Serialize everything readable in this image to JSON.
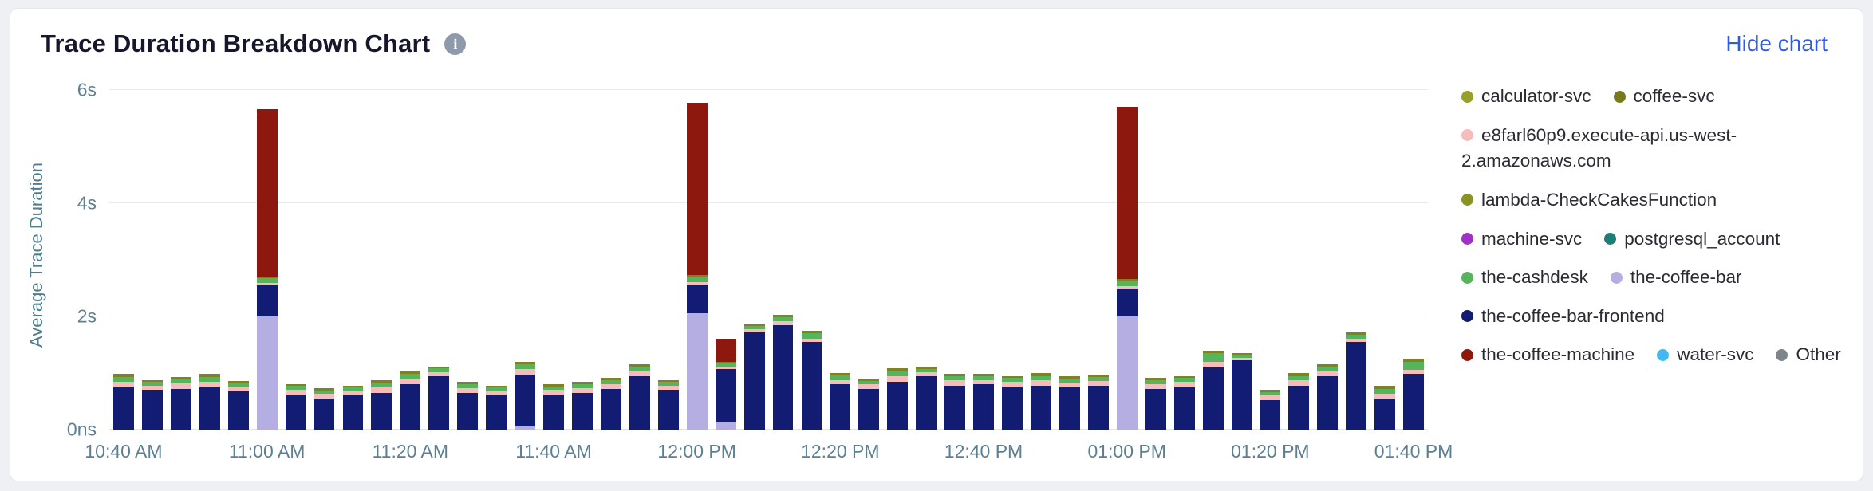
{
  "header": {
    "title": "Trace Duration Breakdown Chart",
    "info_icon": "i",
    "hide_chart_label": "Hide chart"
  },
  "chart_data": {
    "type": "bar",
    "stacked": true,
    "title": "Trace Duration Breakdown Chart",
    "ylabel": "Average Trace Duration",
    "ylim": [
      0,
      6
    ],
    "yticks": [
      {
        "label": "6s",
        "value": 6
      },
      {
        "label": "4s",
        "value": 4
      },
      {
        "label": "2s",
        "value": 2
      },
      {
        "label": "0ns",
        "value": 0
      }
    ],
    "gridline_values": [
      2,
      4,
      6
    ],
    "xticks": [
      {
        "label": "10:40 AM",
        "index": 0
      },
      {
        "label": "11:00 AM",
        "index": 5
      },
      {
        "label": "11:20 AM",
        "index": 10
      },
      {
        "label": "11:40 AM",
        "index": 15
      },
      {
        "label": "12:00 PM",
        "index": 20
      },
      {
        "label": "12:20 PM",
        "index": 25
      },
      {
        "label": "12:40 PM",
        "index": 30
      },
      {
        "label": "01:00 PM",
        "index": 35
      },
      {
        "label": "01:20 PM",
        "index": 40
      },
      {
        "label": "01:40 PM",
        "index": 45
      }
    ],
    "series": [
      {
        "name": "the-coffee-bar",
        "color": "#b5aee2"
      },
      {
        "name": "the-coffee-bar-frontend",
        "color": "#121c72"
      },
      {
        "name": "e8farl60p9.execute-api.us-west-2.amazonaws.com",
        "color": "#f6bcbc"
      },
      {
        "name": "the-cashdesk",
        "color": "#55b45c"
      },
      {
        "name": "coffee-svc",
        "color": "#7e8222"
      },
      {
        "name": "the-coffee-machine",
        "color": "#8c180e"
      }
    ],
    "bars": [
      [
        0,
        0.75,
        0.1,
        0.08,
        0.05,
        0
      ],
      [
        0,
        0.7,
        0.08,
        0.06,
        0.04,
        0
      ],
      [
        0,
        0.72,
        0.1,
        0.07,
        0.04,
        0
      ],
      [
        0,
        0.75,
        0.1,
        0.08,
        0.05,
        0
      ],
      [
        0,
        0.68,
        0.08,
        0.06,
        0.04,
        0
      ],
      [
        2.0,
        0.55,
        0.04,
        0.08,
        0.04,
        2.95
      ],
      [
        0,
        0.62,
        0.08,
        0.07,
        0.04,
        0
      ],
      [
        0,
        0.55,
        0.08,
        0.06,
        0.04,
        0
      ],
      [
        0,
        0.6,
        0.08,
        0.06,
        0.04,
        0
      ],
      [
        0,
        0.65,
        0.1,
        0.07,
        0.05,
        0
      ],
      [
        0,
        0.8,
        0.1,
        0.08,
        0.05,
        0
      ],
      [
        0,
        0.95,
        0.06,
        0.07,
        0.04,
        0
      ],
      [
        0,
        0.65,
        0.08,
        0.07,
        0.04,
        0
      ],
      [
        0,
        0.6,
        0.08,
        0.06,
        0.04,
        0
      ],
      [
        0.05,
        0.92,
        0.1,
        0.08,
        0.05,
        0
      ],
      [
        0,
        0.62,
        0.08,
        0.06,
        0.04,
        0
      ],
      [
        0,
        0.65,
        0.08,
        0.07,
        0.04,
        0
      ],
      [
        0,
        0.72,
        0.09,
        0.07,
        0.04,
        0
      ],
      [
        0,
        0.95,
        0.09,
        0.07,
        0.05,
        0
      ],
      [
        0,
        0.7,
        0.08,
        0.06,
        0.04,
        0
      ],
      [
        2.05,
        0.52,
        0.04,
        0.08,
        0.04,
        3.05
      ],
      [
        0.12,
        0.95,
        0.05,
        0.05,
        0.03,
        0.4
      ],
      [
        0,
        1.72,
        0.05,
        0.06,
        0.03,
        0
      ],
      [
        0,
        1.85,
        0.06,
        0.08,
        0.04,
        0
      ],
      [
        0,
        1.55,
        0.06,
        0.1,
        0.04,
        0
      ],
      [
        0,
        0.8,
        0.08,
        0.08,
        0.04,
        0
      ],
      [
        0,
        0.72,
        0.08,
        0.06,
        0.04,
        0
      ],
      [
        0,
        0.85,
        0.1,
        0.08,
        0.05,
        0
      ],
      [
        0,
        0.95,
        0.06,
        0.06,
        0.04,
        0
      ],
      [
        0,
        0.78,
        0.09,
        0.07,
        0.04,
        0
      ],
      [
        0,
        0.8,
        0.08,
        0.07,
        0.04,
        0
      ],
      [
        0,
        0.75,
        0.09,
        0.07,
        0.04,
        0
      ],
      [
        0,
        0.78,
        0.09,
        0.08,
        0.05,
        0
      ],
      [
        0,
        0.75,
        0.08,
        0.07,
        0.04,
        0
      ],
      [
        0,
        0.78,
        0.08,
        0.07,
        0.04,
        0
      ],
      [
        2.0,
        0.5,
        0.04,
        0.08,
        0.04,
        3.05
      ],
      [
        0,
        0.72,
        0.08,
        0.07,
        0.04,
        0
      ],
      [
        0,
        0.75,
        0.09,
        0.07,
        0.04,
        0
      ],
      [
        0,
        1.1,
        0.1,
        0.15,
        0.05,
        0
      ],
      [
        0,
        1.22,
        0.05,
        0.05,
        0.03,
        0
      ],
      [
        0,
        0.52,
        0.08,
        0.06,
        0.04,
        0
      ],
      [
        0,
        0.78,
        0.09,
        0.08,
        0.05,
        0
      ],
      [
        0,
        0.95,
        0.08,
        0.08,
        0.04,
        0
      ],
      [
        0,
        1.55,
        0.05,
        0.08,
        0.04,
        0
      ],
      [
        0,
        0.55,
        0.09,
        0.08,
        0.05,
        0
      ],
      [
        0,
        0.98,
        0.07,
        0.15,
        0.05,
        0
      ]
    ],
    "legend": [
      {
        "label": "calculator-svc",
        "color": "#97a02c"
      },
      {
        "label": "coffee-svc",
        "color": "#787a1d"
      },
      {
        "label": "e8farl60p9.execute-api.us-west-2.amazonaws.com",
        "color": "#f6bcbc"
      },
      {
        "label": "lambda-CheckCakesFunction",
        "color": "#8a9321"
      },
      {
        "label": "machine-svc",
        "color": "#9d33c4"
      },
      {
        "label": "postgresql_account",
        "color": "#1e7d74"
      },
      {
        "label": "the-cashdesk",
        "color": "#55b45c"
      },
      {
        "label": "the-coffee-bar",
        "color": "#b5aee2"
      },
      {
        "label": "the-coffee-bar-frontend",
        "color": "#121c72"
      },
      {
        "label": "the-coffee-machine",
        "color": "#8c180e"
      },
      {
        "label": "water-svc",
        "color": "#43b8ef"
      },
      {
        "label": "Other",
        "color": "#7d848a"
      }
    ]
  }
}
